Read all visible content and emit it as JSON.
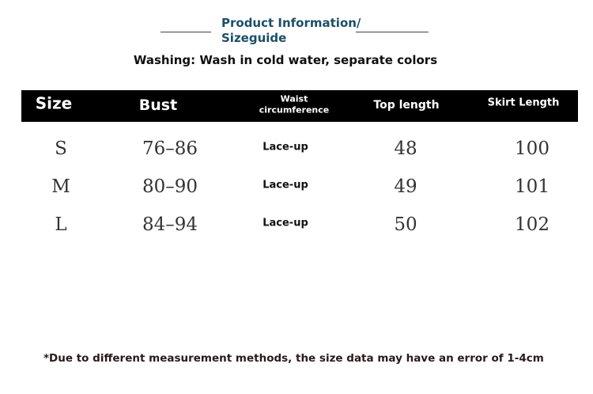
{
  "header": {
    "title_lines": [
      "Product Information/",
      "Sizeguide"
    ],
    "washing": "Washing: Wash in cold water, separate colors"
  },
  "table": {
    "columns": [
      "Size",
      "Bust",
      [
        "Waist",
        "circumference"
      ],
      "Top length",
      "Skirt Length"
    ],
    "rows": [
      [
        "S",
        "76–86",
        "Lace-up",
        "48",
        "100"
      ],
      [
        "M",
        "80–90",
        "Lace-up",
        "49",
        "101"
      ],
      [
        "L",
        "84–94",
        "Lace-up",
        "50",
        "102"
      ]
    ]
  },
  "footnote": "*Due to different measurement methods, the size data may have an error of 1-4cm"
}
